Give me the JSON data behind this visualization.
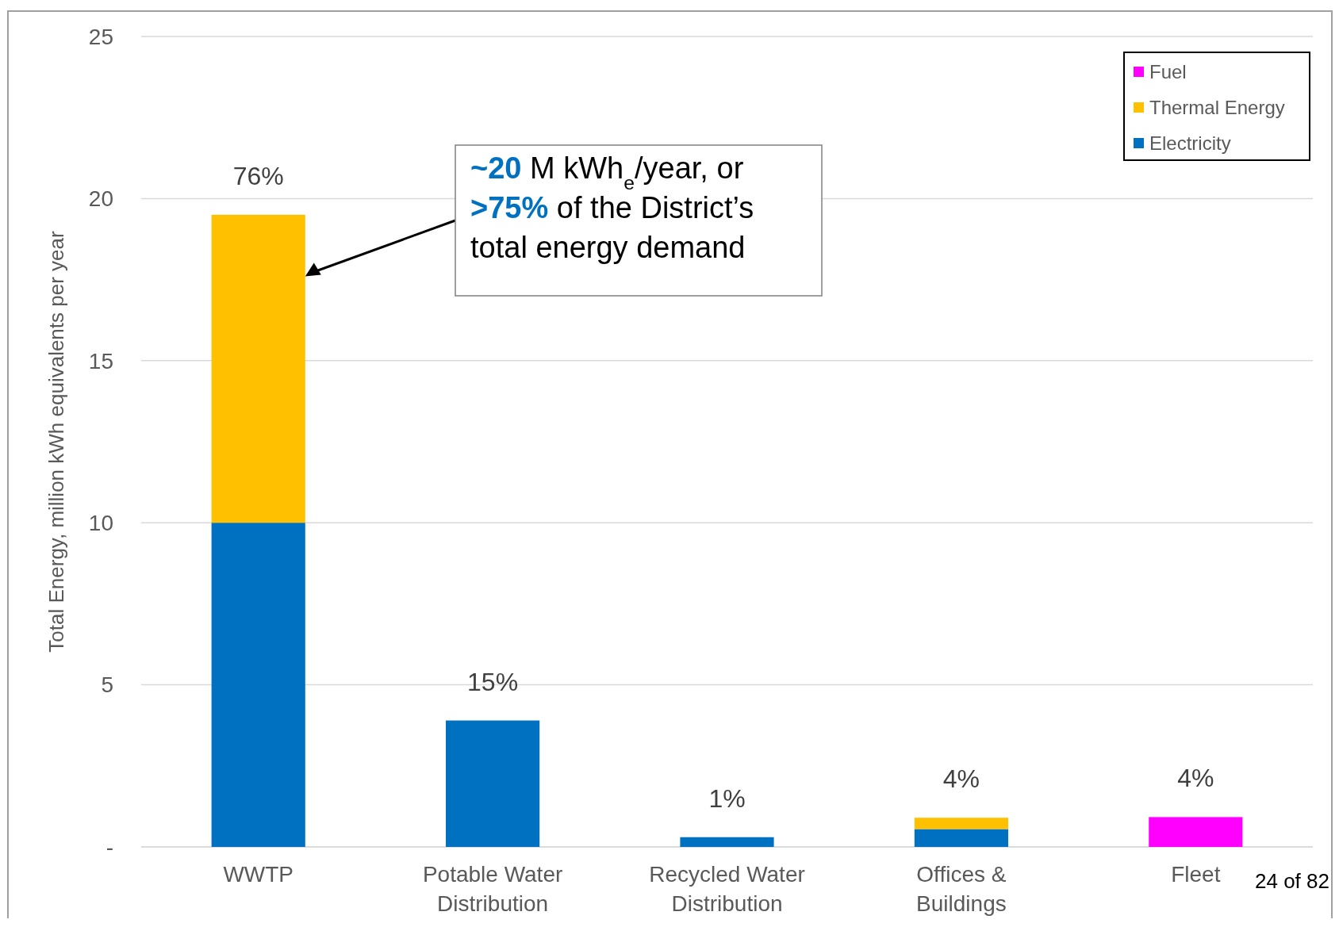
{
  "chart_data": {
    "type": "bar",
    "stacked": true,
    "ylabel": "Total Energy, million kWh equivalents per year",
    "categories": [
      "WWTP",
      "Potable Water Distribution",
      "Recycled Water Distribution",
      "Offices & Buildings",
      "Fleet"
    ],
    "series": [
      {
        "name": "Electricity",
        "color": "#0070c0",
        "values": [
          10,
          3.9,
          0.3,
          0.55,
          null
        ]
      },
      {
        "name": "Thermal Energy",
        "color": "#ffc000",
        "values": [
          9.5,
          null,
          null,
          0.35,
          null
        ]
      },
      {
        "name": "Fuel",
        "color": "#ff00ff",
        "values": [
          null,
          null,
          null,
          null,
          0.92
        ]
      }
    ],
    "ylim": [
      0,
      25
    ],
    "yticks": [
      {
        "value": 0,
        "label": "-"
      },
      5,
      10,
      15,
      20,
      25
    ],
    "grid": "y",
    "legend": "top right",
    "annotations": [
      {
        "text": "76%",
        "x": "WWTP",
        "y": 19.5
      },
      {
        "text": "15%",
        "x": "Potable Water Distribution",
        "y": 3.9
      },
      {
        "text": "1%",
        "x": "Recycled Water Distribution",
        "y": 0.3
      },
      {
        "text": "4%",
        "x": "Offices & Buildings",
        "y": 0.9
      },
      {
        "text": "4%",
        "x": "Fleet",
        "y": 0.92
      },
      "~20 M kWh$_{e}$/year, or >75% of the District’s total energy demand",
      "24 of 82"
    ]
  }
}
